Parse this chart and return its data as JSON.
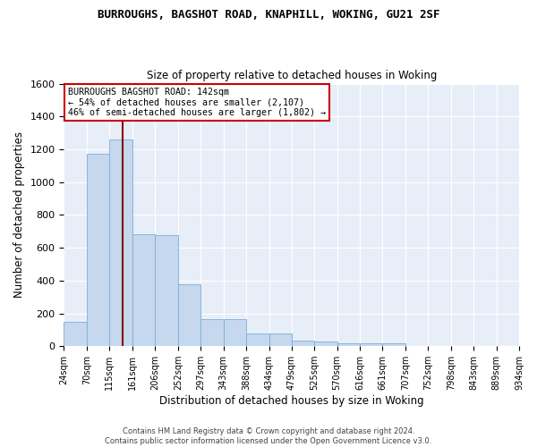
{
  "title": "BURROUGHS, BAGSHOT ROAD, KNAPHILL, WOKING, GU21 2SF",
  "subtitle": "Size of property relative to detached houses in Woking",
  "xlabel": "Distribution of detached houses by size in Woking",
  "ylabel": "Number of detached properties",
  "bar_color": "#c5d8ee",
  "bar_edge_color": "#7aafd4",
  "background_color": "#e8eef8",
  "grid_color": "#ffffff",
  "vline_value": 142,
  "vline_color": "#8b0000",
  "annotation_line1": "BURROUGHS BAGSHOT ROAD: 142sqm",
  "annotation_line2": "← 54% of detached houses are smaller (2,107)",
  "annotation_line3": "46% of semi-detached houses are larger (1,802) →",
  "annotation_box_color": "#ffffff",
  "annotation_box_edge_color": "#cc0000",
  "bin_edges": [
    24,
    70,
    115,
    161,
    206,
    252,
    297,
    343,
    388,
    434,
    479,
    525,
    570,
    616,
    661,
    707,
    752,
    798,
    843,
    889,
    934
  ],
  "bar_heights": [
    150,
    1170,
    1260,
    680,
    675,
    375,
    165,
    165,
    80,
    78,
    35,
    30,
    20,
    18,
    15,
    0,
    0,
    0,
    0,
    0
  ],
  "ylim": [
    0,
    1600
  ],
  "yticks": [
    0,
    200,
    400,
    600,
    800,
    1000,
    1200,
    1400,
    1600
  ],
  "xtick_labels": [
    "24sqm",
    "70sqm",
    "115sqm",
    "161sqm",
    "206sqm",
    "252sqm",
    "297sqm",
    "343sqm",
    "388sqm",
    "434sqm",
    "479sqm",
    "525sqm",
    "570sqm",
    "616sqm",
    "661sqm",
    "707sqm",
    "752sqm",
    "798sqm",
    "843sqm",
    "889sqm",
    "934sqm"
  ],
  "footer_text": "Contains HM Land Registry data © Crown copyright and database right 2024.\nContains public sector information licensed under the Open Government Licence v3.0.",
  "figsize": [
    6.0,
    5.0
  ],
  "dpi": 100
}
